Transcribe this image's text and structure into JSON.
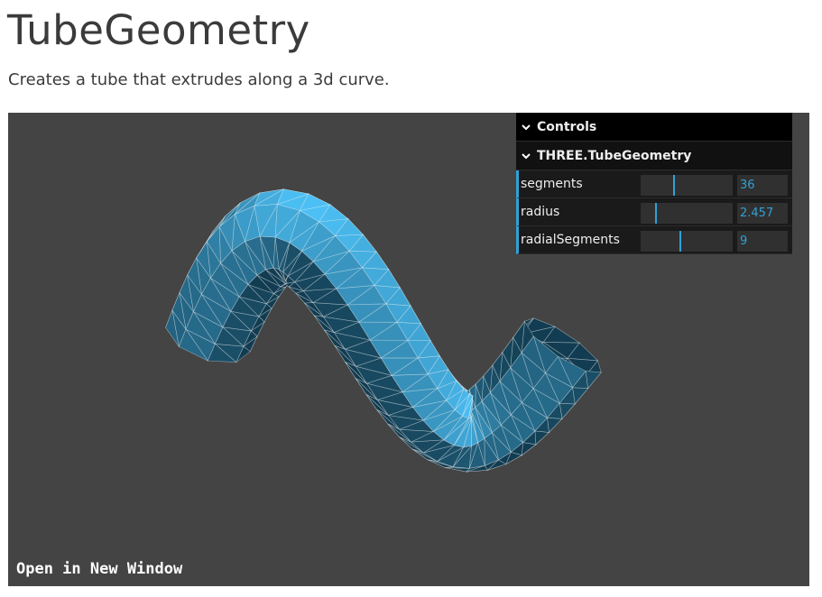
{
  "page": {
    "title": "TubeGeometry",
    "description": "Creates a tube that extrudes along a 3d curve."
  },
  "viewport": {
    "background": "#444444",
    "open_link": "Open in New Window",
    "mesh_color": "#2194ce",
    "wireframe_color": "#ffffff"
  },
  "gui": {
    "header": "Controls",
    "folder": "THREE.TubeGeometry",
    "accent": "#2fa1d6",
    "controls": [
      {
        "label": "segments",
        "value": "36",
        "fraction": 0.35
      },
      {
        "label": "radius",
        "value": "2.457",
        "fraction": 0.16
      },
      {
        "label": "radialSegments",
        "value": "9",
        "fraction": 0.42
      }
    ]
  }
}
